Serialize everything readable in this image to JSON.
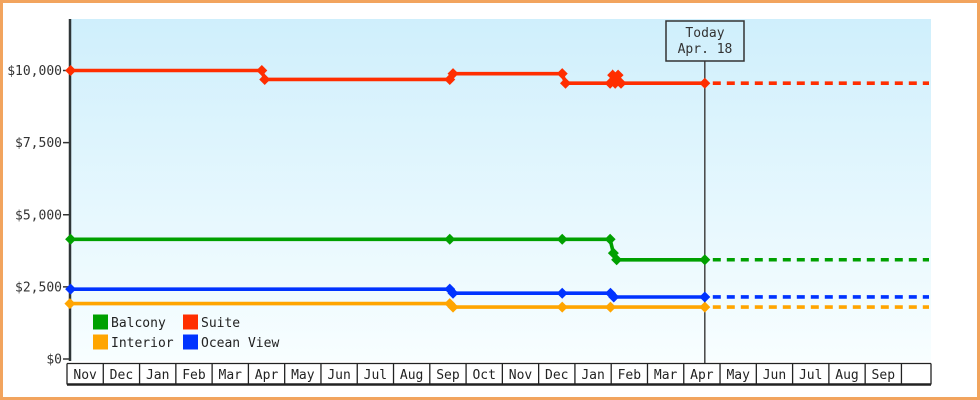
{
  "window": {
    "border_color": "#f2a45e"
  },
  "chart_data": {
    "type": "line",
    "title": "",
    "ylabel": "",
    "xlabel": "",
    "grid": false,
    "legend_position": "bottom-left-inside",
    "plot_bg_top": "#cfeffc",
    "plot_bg_bottom": "#f8feff",
    "y_axis": {
      "ticks": [
        {
          "label": "$0",
          "value": 0
        },
        {
          "label": "$2,500",
          "value": 2500
        },
        {
          "label": "$5,000",
          "value": 5000
        },
        {
          "label": "$7,500",
          "value": 7500
        },
        {
          "label": "$10,000",
          "value": 10000
        }
      ],
      "ylim": [
        0,
        10000
      ]
    },
    "x_axis": {
      "months": [
        "Nov",
        "Dec",
        "Jan",
        "Feb",
        "Mar",
        "Apr",
        "May",
        "Jun",
        "Jul",
        "Aug",
        "Sep",
        "Oct",
        "Nov",
        "Dec",
        "Jan",
        "Feb",
        "Mar",
        "Apr",
        "May",
        "Jun",
        "Jul",
        "Aug",
        "Sep"
      ],
      "trailing_empty_cell": true
    },
    "today": {
      "label_line1": "Today",
      "label_line2": "Apr. 18",
      "month_position": 17.58
    },
    "series": [
      {
        "name": "Balcony",
        "color": "#00a000",
        "points": [
          [
            0.1,
            4150
          ],
          [
            10.55,
            4150
          ],
          [
            13.65,
            4150
          ],
          [
            14.97,
            4150
          ],
          [
            15.06,
            3670
          ],
          [
            15.15,
            3440
          ],
          [
            17.58,
            3440
          ]
        ],
        "future_value": 3440
      },
      {
        "name": "Suite",
        "color": "#ff2e00",
        "points": [
          [
            0.1,
            10000
          ],
          [
            5.37,
            10000
          ],
          [
            5.45,
            9690
          ],
          [
            10.55,
            9690
          ],
          [
            10.64,
            9890
          ],
          [
            13.65,
            9890
          ],
          [
            13.74,
            9560
          ],
          [
            14.97,
            9560
          ],
          [
            15.04,
            9840
          ],
          [
            15.11,
            9560
          ],
          [
            15.19,
            9840
          ],
          [
            15.27,
            9560
          ],
          [
            17.58,
            9560
          ]
        ],
        "future_value": 9560
      },
      {
        "name": "Interior",
        "color": "#ffa500",
        "points": [
          [
            0.08,
            1920
          ],
          [
            10.55,
            1920
          ],
          [
            10.64,
            1800
          ],
          [
            13.65,
            1800
          ],
          [
            14.98,
            1800
          ],
          [
            17.58,
            1800
          ]
        ],
        "future_value": 1800
      },
      {
        "name": "Ocean View",
        "color": "#0033ff",
        "points": [
          [
            0.1,
            2420
          ],
          [
            10.55,
            2420
          ],
          [
            10.64,
            2280
          ],
          [
            13.65,
            2280
          ],
          [
            14.98,
            2280
          ],
          [
            15.07,
            2150
          ],
          [
            17.58,
            2150
          ]
        ],
        "future_value": 2150
      }
    ],
    "legend": [
      {
        "label": "Balcony",
        "color": "#00a000"
      },
      {
        "label": "Suite",
        "color": "#ff2e00"
      },
      {
        "label": "Interior",
        "color": "#ffa500"
      },
      {
        "label": "Ocean View",
        "color": "#0033ff"
      }
    ]
  }
}
